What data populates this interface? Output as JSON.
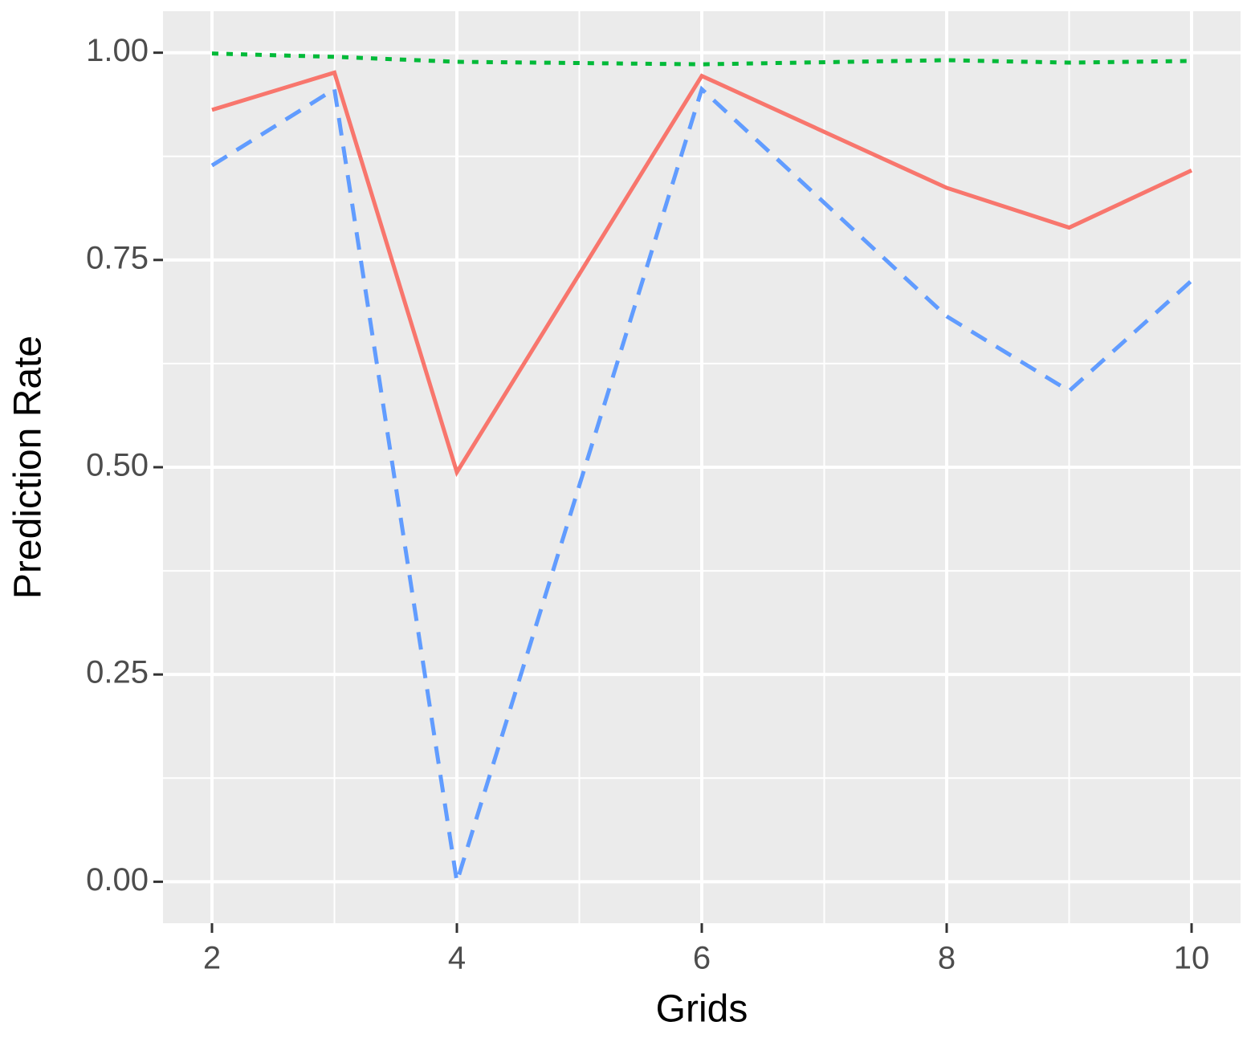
{
  "chart_data": {
    "type": "line",
    "x_label": "Grids",
    "y_label": "Prediction Rate",
    "xlim": [
      1.6,
      10.4
    ],
    "ylim": [
      -0.05,
      1.05
    ],
    "xticks": [
      2,
      4,
      6,
      8,
      10
    ],
    "yticks": [
      {
        "value": 0,
        "label": "0.00"
      },
      {
        "value": 0.25,
        "label": "0.25"
      },
      {
        "value": 0.5,
        "label": "0.50"
      },
      {
        "value": 0.75,
        "label": "0.75"
      },
      {
        "value": 1,
        "label": "1.00"
      }
    ],
    "xminor": [
      3,
      5,
      7,
      9
    ],
    "yminor": [
      0.125,
      0.375,
      0.625,
      0.875
    ],
    "grid": true,
    "x": [
      2,
      3,
      4,
      6,
      8,
      9,
      10
    ],
    "series": [
      {
        "color": "#f8766d",
        "dash": "solid",
        "values": [
          0.931,
          0.976,
          0.494,
          0.972,
          0.837,
          0.789,
          0.858
        ]
      },
      {
        "color": "#619cff",
        "dash": "dashed",
        "values": [
          0.864,
          0.956,
          0.0,
          0.956,
          0.682,
          0.592,
          0.725
        ]
      },
      {
        "color": "#00ba38",
        "dash": "dotted",
        "values": [
          0.999,
          0.995,
          0.989,
          0.986,
          0.991,
          0.988,
          0.99
        ]
      }
    ]
  }
}
